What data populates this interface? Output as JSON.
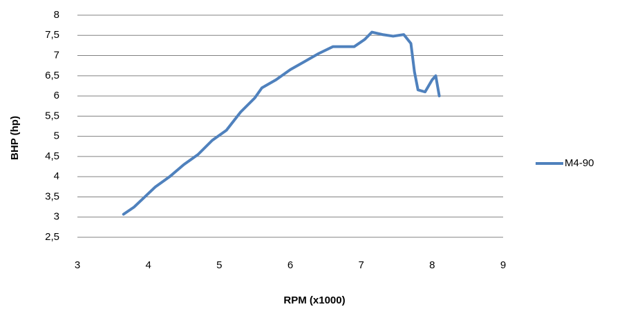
{
  "chart_data": {
    "type": "line",
    "x_label": "RPM (x1000)",
    "y_label": "BHP (hp)",
    "x": [
      3.65,
      3.8,
      3.95,
      4.1,
      4.3,
      4.5,
      4.7,
      4.9,
      5.1,
      5.3,
      5.5,
      5.6,
      5.8,
      6.0,
      6.2,
      6.4,
      6.6,
      6.9,
      7.05,
      7.15,
      7.3,
      7.45,
      7.6,
      7.7,
      7.75,
      7.8,
      7.9,
      8.0,
      8.05,
      8.1
    ],
    "series": [
      {
        "name": "M4-90",
        "color": "#4f81bd",
        "values": [
          3.07,
          3.25,
          3.5,
          3.75,
          4.0,
          4.3,
          4.55,
          4.9,
          5.15,
          5.6,
          5.95,
          6.2,
          6.4,
          6.65,
          6.85,
          7.05,
          7.22,
          7.22,
          7.4,
          7.58,
          7.52,
          7.48,
          7.52,
          7.3,
          6.6,
          6.15,
          6.1,
          6.4,
          6.5,
          6.0
        ]
      }
    ],
    "xlim": [
      3,
      9
    ],
    "xticks": [
      3,
      4,
      5,
      6,
      7,
      8,
      9
    ],
    "ylim": [
      2.5,
      8
    ],
    "yticks": [
      {
        "value": 2.5,
        "label": "2,5"
      },
      3,
      {
        "value": 3.5,
        "label": "3,5"
      },
      4,
      {
        "value": 4.5,
        "label": "4,5"
      },
      5,
      {
        "value": 5.5,
        "label": "5,5"
      },
      6,
      {
        "value": 6.5,
        "label": "6,5"
      },
      7,
      {
        "value": 7.5,
        "label": "7,5"
      },
      8
    ],
    "grid": true,
    "legend": "right"
  }
}
